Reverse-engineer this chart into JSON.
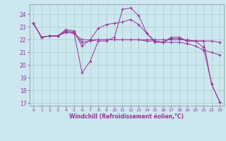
{
  "xlabel": "Windchill (Refroidissement éolien,°C)",
  "bg_color": "#cce8ee",
  "grid_color": "#aacccc",
  "line_color": "#993399",
  "xlim": [
    -0.5,
    23.5
  ],
  "ylim": [
    16.8,
    24.8
  ],
  "yticks": [
    17,
    18,
    19,
    20,
    21,
    22,
    23,
    24
  ],
  "xticks": [
    0,
    1,
    2,
    3,
    4,
    5,
    6,
    7,
    8,
    9,
    10,
    11,
    12,
    13,
    14,
    15,
    16,
    17,
    18,
    19,
    20,
    21,
    22,
    23
  ],
  "lines": [
    [
      23.3,
      22.2,
      22.3,
      22.3,
      22.7,
      22.6,
      19.4,
      20.3,
      21.9,
      21.9,
      22.2,
      24.4,
      24.5,
      23.9,
      22.5,
      21.8,
      21.8,
      22.2,
      22.2,
      21.9,
      21.9,
      21.9,
      18.5,
      17.1
    ],
    [
      23.3,
      22.2,
      22.3,
      22.3,
      22.8,
      22.7,
      21.5,
      22.0,
      22.9,
      23.2,
      23.3,
      23.4,
      23.6,
      23.2,
      22.5,
      21.9,
      21.8,
      22.1,
      22.1,
      21.9,
      21.9,
      21.4,
      18.5,
      17.1
    ],
    [
      23.3,
      22.2,
      22.3,
      22.3,
      22.6,
      22.5,
      22.0,
      22.0,
      22.0,
      22.0,
      22.0,
      22.0,
      22.0,
      22.0,
      22.0,
      22.0,
      22.0,
      22.0,
      22.0,
      22.0,
      21.9,
      21.9,
      21.9,
      21.8
    ],
    [
      23.3,
      22.2,
      22.3,
      22.3,
      22.6,
      22.5,
      21.8,
      21.9,
      22.0,
      22.0,
      22.0,
      22.0,
      22.0,
      22.0,
      21.9,
      21.9,
      21.8,
      21.8,
      21.8,
      21.7,
      21.5,
      21.2,
      21.0,
      20.8
    ]
  ]
}
